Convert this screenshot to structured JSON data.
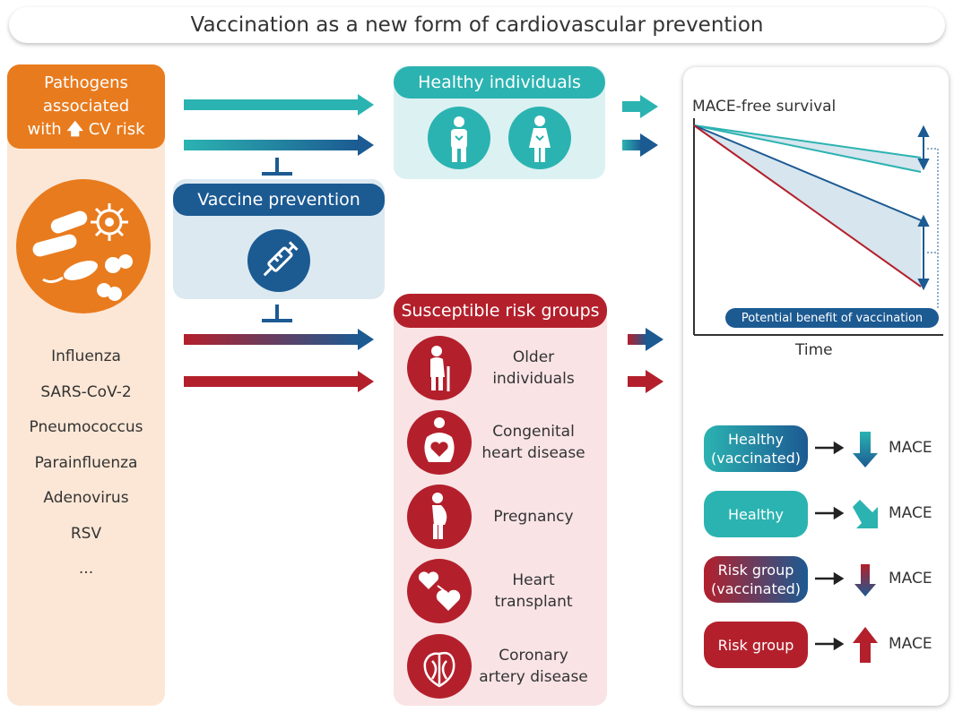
{
  "title": "Vaccination as a new form of cardiovascular prevention",
  "pathogens": {
    "header_line1": "Pathogens",
    "header_line2": "associated",
    "header_line3_prefix": "with",
    "header_line3_suffix": "CV risk",
    "list": [
      "Influenza",
      "SARS-CoV-2",
      "Pneumococcus",
      "Parainfluenza",
      "Adenovirus",
      "RSV",
      "..."
    ]
  },
  "vaccine": {
    "header": "Vaccine prevention"
  },
  "healthy": {
    "header": "Healthy individuals"
  },
  "risk": {
    "header": "Susceptible risk groups",
    "groups": [
      {
        "line1": "Older",
        "line2": "individuals"
      },
      {
        "line1": "Congenital",
        "line2": "heart disease"
      },
      {
        "line1": "Pregnancy",
        "line2": ""
      },
      {
        "line1": "Heart",
        "line2": "transplant"
      },
      {
        "line1": "Coronary",
        "line2": "artery disease"
      }
    ]
  },
  "chart": {
    "ylabel": "MACE-free survival",
    "xlabel": "Time",
    "benefit": "Potential benefit of vaccination"
  },
  "outcomes": [
    {
      "line1": "Healthy",
      "line2": "(vaccinated)",
      "mace": "MACE",
      "direction": "down"
    },
    {
      "line1": "Healthy",
      "line2": "",
      "mace": "MACE",
      "direction": "down-right"
    },
    {
      "line1": "Risk group",
      "line2": "(vaccinated)",
      "mace": "MACE",
      "direction": "down"
    },
    {
      "line1": "Risk group",
      "line2": "",
      "mace": "MACE",
      "direction": "up"
    }
  ],
  "colors": {
    "orange": "#e87b1e",
    "teal": "#2bb3b1",
    "navy": "#1c5a92",
    "red": "#b3202c"
  }
}
